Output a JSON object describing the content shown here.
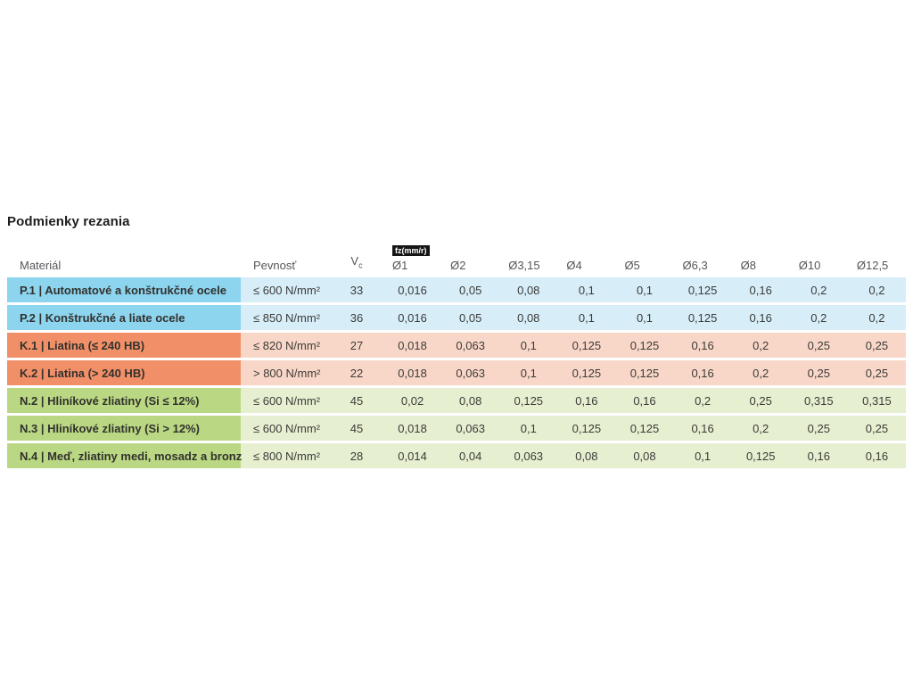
{
  "page": {
    "title": "Podmienky rezania"
  },
  "table": {
    "header": {
      "material": "Materiál",
      "pevnost": "Pevnosť",
      "vc_main": "V",
      "vc_sub": "c",
      "fz_badge": "fz(mm/r)",
      "diameters": [
        "Ø1",
        "Ø2",
        "Ø3,15",
        "Ø4",
        "Ø5",
        "Ø6,3",
        "Ø8",
        "Ø10",
        "Ø12,5"
      ]
    },
    "colors": {
      "p_dark": "#8dd4ef",
      "p_light": "#d7eef9",
      "k_dark": "#f19068",
      "k_light": "#f9d7c8",
      "n_dark": "#bad883",
      "n_light": "#e6efd0"
    },
    "rows": [
      {
        "group": "P",
        "material": "P.1 | Automatové a konštrukčné ocele",
        "pevnost": "≤ 600 N/mm²",
        "vc": "33",
        "values": [
          "0,016",
          "0,05",
          "0,08",
          "0,1",
          "0,1",
          "0,125",
          "0,16",
          "0,2",
          "0,2"
        ]
      },
      {
        "group": "P",
        "material": "P.2 | Konštrukčné a liate ocele",
        "pevnost": "≤ 850 N/mm²",
        "vc": "36",
        "values": [
          "0,016",
          "0,05",
          "0,08",
          "0,1",
          "0,1",
          "0,125",
          "0,16",
          "0,2",
          "0,2"
        ]
      },
      {
        "group": "K",
        "material": "K.1 | Liatina (≤ 240 HB)",
        "pevnost": "≤ 820 N/mm²",
        "vc": "27",
        "values": [
          "0,018",
          "0,063",
          "0,1",
          "0,125",
          "0,125",
          "0,16",
          "0,2",
          "0,25",
          "0,25"
        ]
      },
      {
        "group": "K",
        "material": "K.2 | Liatina (> 240 HB)",
        "pevnost": "> 800 N/mm²",
        "vc": "22",
        "values": [
          "0,018",
          "0,063",
          "0,1",
          "0,125",
          "0,125",
          "0,16",
          "0,2",
          "0,25",
          "0,25"
        ]
      },
      {
        "group": "N",
        "material": "N.2 | Hliníkové zliatiny (Si ≤ 12%)",
        "pevnost": "≤ 600 N/mm²",
        "vc": "45",
        "values": [
          "0,02",
          "0,08",
          "0,125",
          "0,16",
          "0,16",
          "0,2",
          "0,25",
          "0,315",
          "0,315"
        ]
      },
      {
        "group": "N",
        "material": "N.3 | Hliníkové zliatiny (Si > 12%)",
        "pevnost": "≤ 600 N/mm²",
        "vc": "45",
        "values": [
          "0,018",
          "0,063",
          "0,1",
          "0,125",
          "0,125",
          "0,16",
          "0,2",
          "0,25",
          "0,25"
        ]
      },
      {
        "group": "N",
        "material": "N.4 | Meď, zliatiny medi, mosadz a bronz",
        "pevnost": "≤ 800 N/mm²",
        "vc": "28",
        "values": [
          "0,014",
          "0,04",
          "0,063",
          "0,08",
          "0,08",
          "0,1",
          "0,125",
          "0,16",
          "0,16"
        ]
      }
    ]
  }
}
